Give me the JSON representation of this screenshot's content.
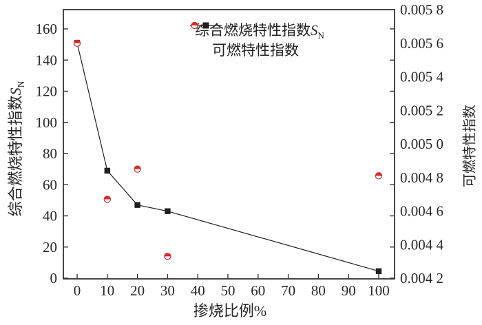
{
  "labels": {
    "x_axis": "掺烧比例%",
    "left_axis_prefix": "综合燃烧特性指数",
    "sn_s": "S",
    "sn_n": "N",
    "right_axis": "可燃特性指数"
  },
  "legend": {
    "series1_prefix": "综合燃烧特性指数",
    "series1_s": "S",
    "series1_sub": "N",
    "series2": "可燃特性指数"
  },
  "colors": {
    "frame": "#333333",
    "text": "#262626",
    "series1": "#1f1f1f",
    "series2": "#d42c2c"
  },
  "chart_data": {
    "type": "line",
    "title": "",
    "xlabel": "掺烧比例%",
    "ylabel_left": "综合燃烧特性指数S_N",
    "ylabel_right": "可燃特性指数",
    "x_ticks": [
      0,
      10,
      20,
      30,
      40,
      50,
      60,
      70,
      80,
      90,
      100
    ],
    "left_axis": {
      "ticks": [
        0,
        20,
        40,
        60,
        80,
        100,
        120,
        140,
        160
      ],
      "range": [
        0,
        172
      ]
    },
    "right_axis": {
      "range": [
        0.0042,
        0.0058
      ],
      "ticks": [
        {
          "v": 0.0058,
          "label": "0.005 8"
        },
        {
          "v": 0.0056,
          "label": "0.005 6"
        },
        {
          "v": 0.0054,
          "label": "0.005 4"
        },
        {
          "v": 0.0052,
          "label": "0.005 2"
        },
        {
          "v": 0.005,
          "label": "0.005 0"
        },
        {
          "v": 0.0048,
          "label": "0.004 8"
        },
        {
          "v": 0.0046,
          "label": "0.004 6"
        },
        {
          "v": 0.0044,
          "label": "0.004 4"
        },
        {
          "v": 0.0042,
          "label": "0.004 2"
        }
      ]
    },
    "series": [
      {
        "name": "综合燃烧特性指数S_N",
        "axis": "left",
        "marker": "filled-square",
        "line": true,
        "color": "#1f1f1f",
        "x": [
          0,
          10,
          20,
          30,
          100
        ],
        "y": [
          151,
          69,
          47,
          43,
          4.5
        ]
      },
      {
        "name": "可燃特性指数",
        "axis": "right",
        "marker": "half-filled-circle",
        "line": false,
        "color": "#d42c2c",
        "x": [
          0,
          10,
          20,
          30,
          100
        ],
        "y": [
          0.0056,
          0.00467,
          0.00485,
          0.00433,
          0.00481
        ]
      }
    ]
  }
}
